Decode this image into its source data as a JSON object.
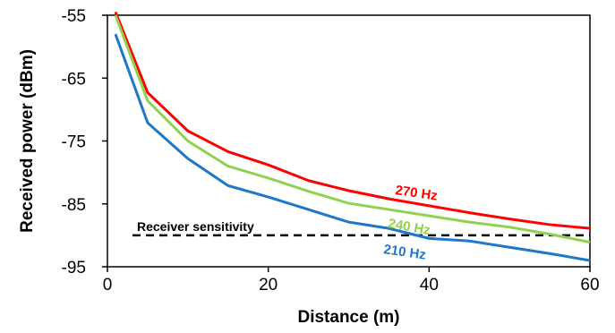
{
  "chart_data": {
    "type": "line",
    "xlabel": "Distance (m)",
    "ylabel": "Received power (dBm)",
    "xlim": [
      0,
      60
    ],
    "ylim": [
      -95,
      -55
    ],
    "x_ticks": [
      0,
      20,
      40,
      60
    ],
    "y_ticks": [
      -55,
      -65,
      -75,
      -85,
      -95
    ],
    "grid": false,
    "legend": "none",
    "series": [
      {
        "name": "270 Hz",
        "color": "#ff0000",
        "x": [
          1,
          5,
          10,
          15,
          20,
          25,
          30,
          35,
          40,
          45,
          50,
          55,
          60
        ],
        "y": [
          -54.5,
          -67.3,
          -73.4,
          -76.7,
          -78.8,
          -81.3,
          -82.9,
          -84.2,
          -85.3,
          -86.4,
          -87.4,
          -88.3,
          -88.9
        ]
      },
      {
        "name": "240 Hz",
        "color": "#92d050",
        "x": [
          1,
          5,
          10,
          15,
          20,
          25,
          30,
          35,
          40,
          45,
          50,
          55,
          60
        ],
        "y": [
          -55.0,
          -68.6,
          -75.0,
          -79.0,
          -80.9,
          -83.0,
          -84.9,
          -85.9,
          -86.9,
          -87.9,
          -88.7,
          -89.8,
          -91.1
        ]
      },
      {
        "name": "210 Hz",
        "color": "#1f77c8",
        "x": [
          1,
          5,
          10,
          15,
          20,
          25,
          30,
          35,
          40,
          45,
          50,
          55,
          60
        ],
        "y": [
          -58.0,
          -72.1,
          -77.8,
          -82.1,
          -83.9,
          -85.9,
          -87.9,
          -88.9,
          -90.5,
          -90.9,
          -91.9,
          -92.9,
          -94.0
        ]
      }
    ],
    "annotations": [
      {
        "text": "Receiver sensitivity",
        "line_y": -90
      }
    ]
  }
}
